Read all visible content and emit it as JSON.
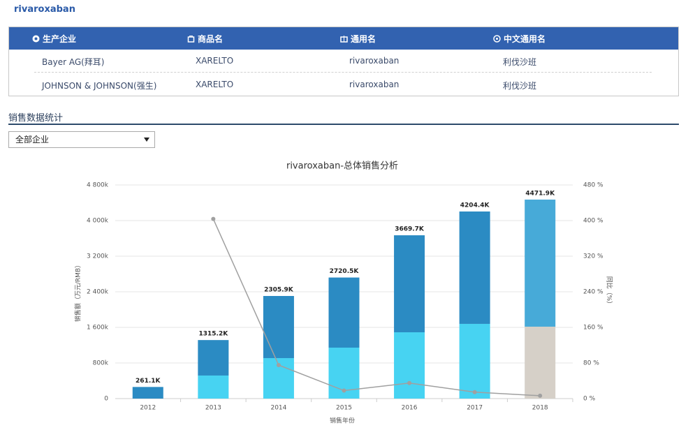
{
  "header": {
    "title": "rivaroxaban"
  },
  "table": {
    "columns": [
      "生产企业",
      "商品名",
      "通用名",
      "中文通用名"
    ],
    "rows": [
      [
        "Bayer AG(拜耳)",
        "XARELTO",
        "rivaroxaban",
        "利伐沙班"
      ],
      [
        "JOHNSON & JOHNSON(强生)",
        "XARELTO",
        "rivaroxaban",
        "利伐沙班"
      ]
    ]
  },
  "section": {
    "title": "销售数据统计"
  },
  "filter": {
    "selected": "全部企业"
  },
  "chart_data": {
    "type": "bar",
    "stacked": true,
    "title": "rivaroxaban-总体销售分析",
    "xlabel": "销售年份",
    "ylabel": "销售额（万元/RMB）",
    "y2label": "同比（%）",
    "categories": [
      "2012",
      "2013",
      "2014",
      "2015",
      "2016",
      "2017",
      "2018"
    ],
    "series": [
      {
        "type": "bar",
        "colors": [
          "#47d3f2",
          "#47d3f2",
          "#47d3f2",
          "#47d3f2",
          "#47d3f2",
          "#47d3f2",
          "#d6d0c8"
        ],
        "values": [
          0,
          518,
          910,
          1145,
          1490,
          1679,
          1616
        ]
      },
      {
        "type": "bar",
        "colors": [
          "#2b8bc3",
          "#2b8bc3",
          "#2b8bc3",
          "#2b8bc3",
          "#2b8bc3",
          "#2b8bc3",
          "#47aad8"
        ],
        "values": [
          261.1,
          797.2,
          1395.9,
          1575.5,
          2179.7,
          2525.4,
          2855.9
        ]
      },
      {
        "type": "line",
        "axis": "y2",
        "color": "#a0a0a0",
        "values": [
          null,
          403.7,
          75.3,
          18.0,
          34.9,
          14.6,
          6.4
        ]
      }
    ],
    "totals": {
      "values": [
        261.1,
        1315.2,
        2305.9,
        2720.5,
        3669.7,
        4204.4,
        4471.9
      ],
      "value_labels": [
        "261.1K",
        "1315.2K",
        "2305.9K",
        "2720.5K",
        "3669.7K",
        "4204.4K",
        "4471.9K"
      ]
    },
    "ylim": [
      0,
      4800
    ],
    "yticks": [
      0,
      {
        "value": 800,
        "label": "800k"
      },
      {
        "value": 1600,
        "label": "1 600k"
      },
      {
        "value": 2400,
        "label": "2 400k"
      },
      {
        "value": 3200,
        "label": "3 200k"
      },
      {
        "value": 4000,
        "label": "4 000k"
      },
      {
        "value": 4800,
        "label": "4 800k"
      }
    ],
    "y2lim": [
      0,
      480
    ],
    "y2ticks": [
      {
        "value": 0,
        "label": "0 %"
      },
      {
        "value": 80,
        "label": "80 %"
      },
      {
        "value": 160,
        "label": "160 %"
      },
      {
        "value": 240,
        "label": "240 %"
      },
      {
        "value": 320,
        "label": "320 %"
      },
      {
        "value": 400,
        "label": "400 %"
      },
      {
        "value": 480,
        "label": "480 %"
      }
    ],
    "grid": true
  }
}
